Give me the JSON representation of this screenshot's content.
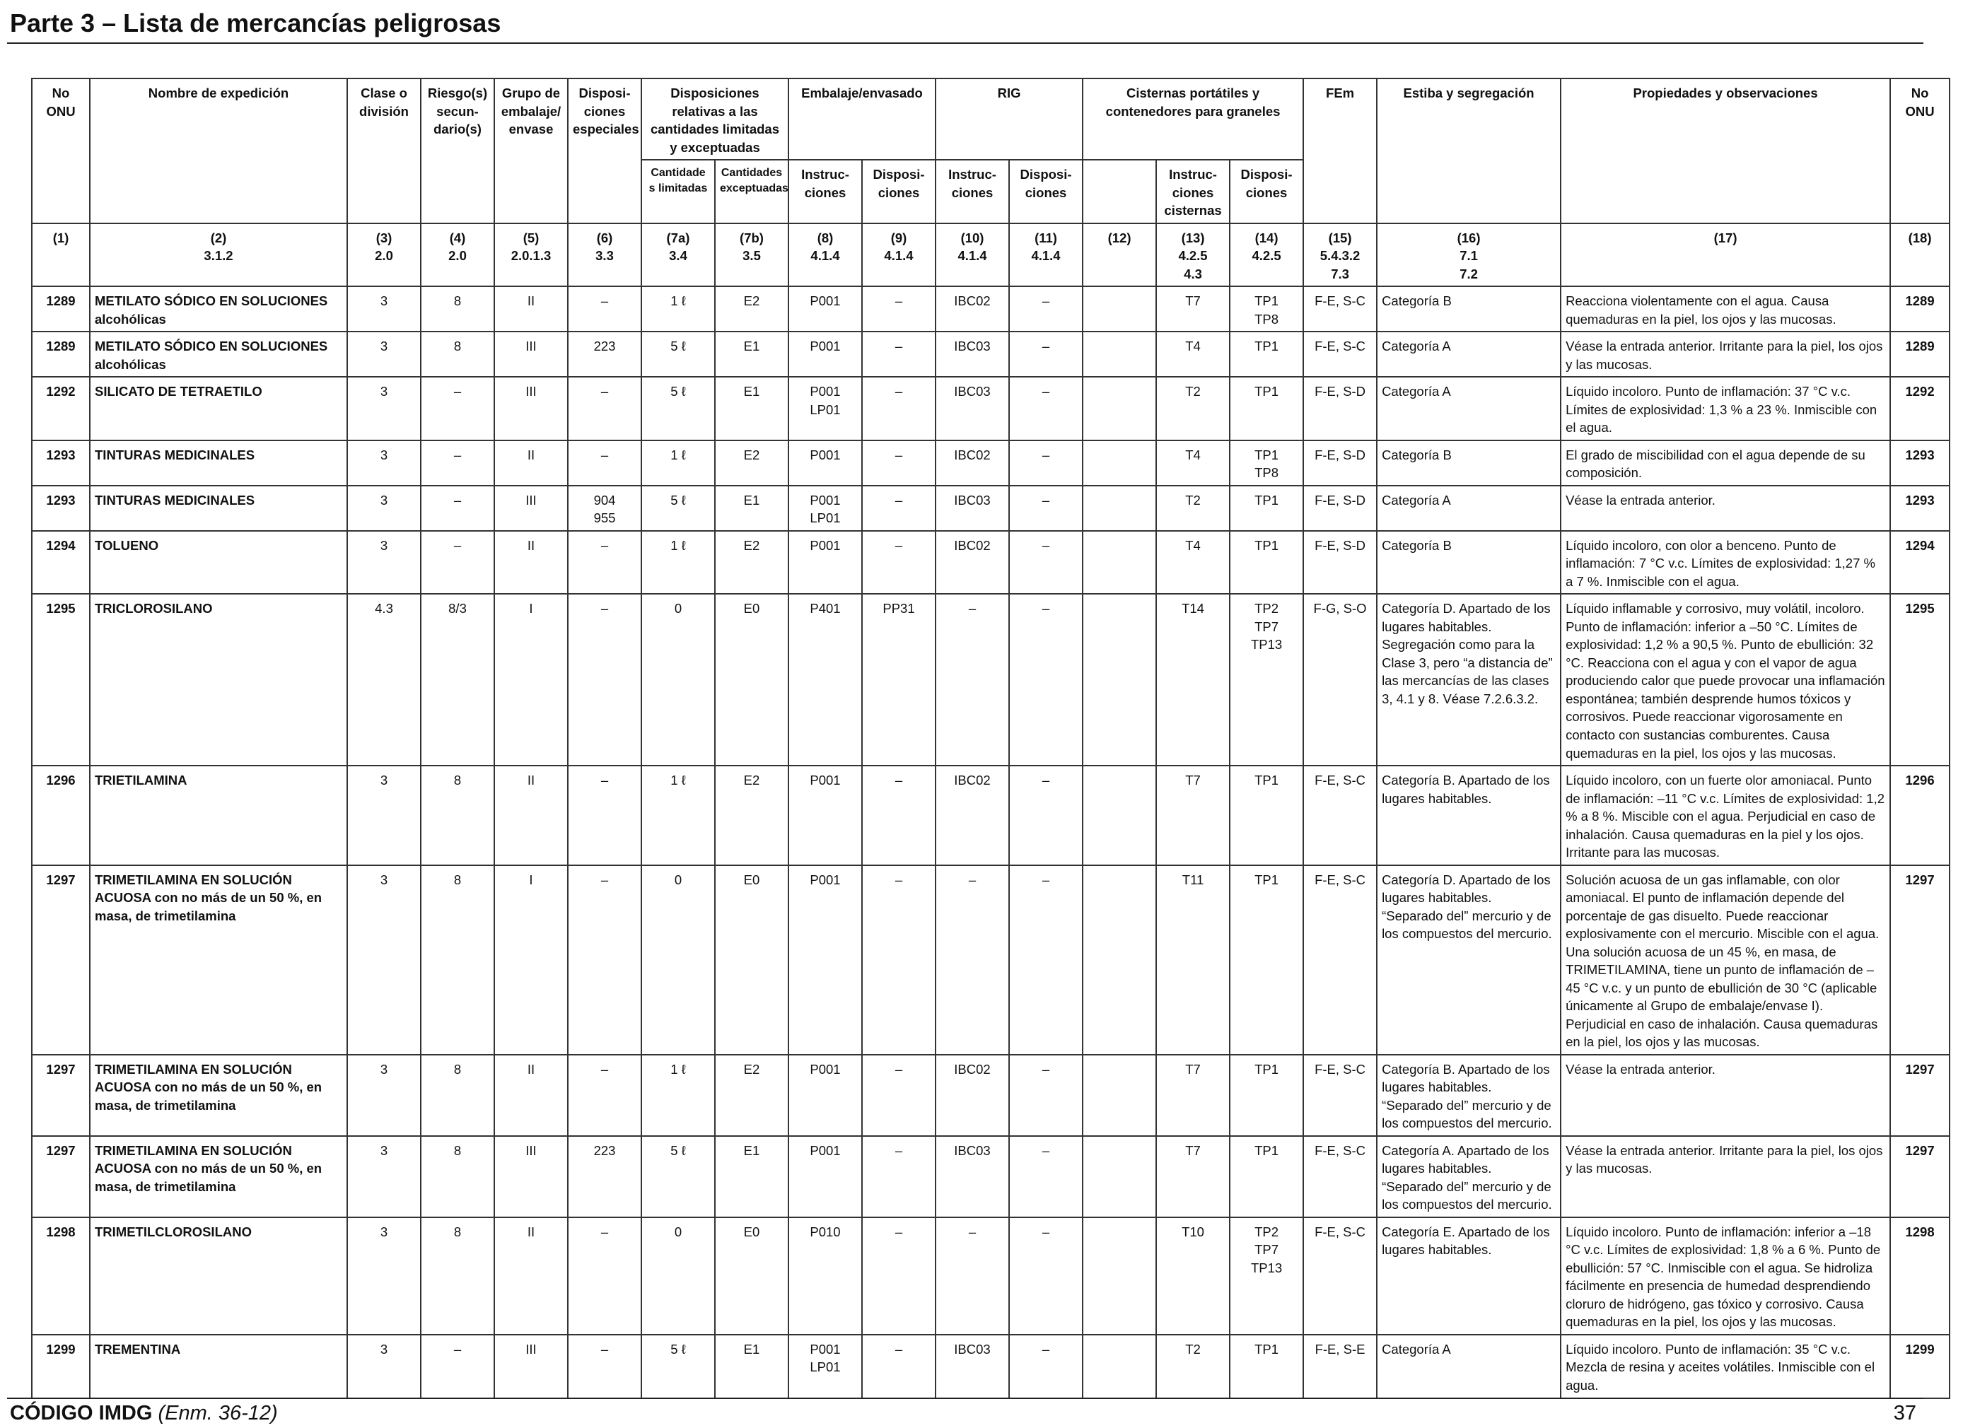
{
  "page": {
    "title": "Parte 3 – Lista de mercancías peligrosas",
    "footer_code": "CÓDIGO IMDG",
    "footer_amendment": "(Enm. 36-12)",
    "page_number": "37"
  },
  "headers": {
    "un_no": "No ONU",
    "shipping_name": "Nombre de expedición",
    "class": "Clase o división",
    "subsidiary_risk": "Riesgo(s) secun-dario(s)",
    "packing_group": "Grupo de embalaje/ envase",
    "special_provisions": "Disposi-ciones especiales",
    "limited_excepted": "Disposiciones relativas a las cantidades limitadas y exceptuadas",
    "limited_qty": "Cantidade s limitadas",
    "excepted_qty": "Cantidades exceptuadas",
    "packaging": "Embalaje/envasado",
    "instructions": "Instruc-ciones",
    "provisions": "Disposi-ciones",
    "ibc": "RIG",
    "tanks": "Cisternas portátiles y contenedores para graneles",
    "tank_instructions": "Instruc-ciones cisternas",
    "ems": "FEm",
    "stowage": "Estiba y segregación",
    "properties": "Propiedades y observaciones",
    "un_no_right": "No ONU"
  },
  "column_refs": [
    [
      "(1)"
    ],
    [
      "(2)",
      "3.1.2"
    ],
    [
      "(3)",
      "2.0"
    ],
    [
      "(4)",
      "2.0"
    ],
    [
      "(5)",
      "2.0.1.3"
    ],
    [
      "(6)",
      "3.3"
    ],
    [
      "(7a)",
      "3.4"
    ],
    [
      "(7b)",
      "3.5"
    ],
    [
      "(8)",
      "4.1.4"
    ],
    [
      "(9)",
      "4.1.4"
    ],
    [
      "(10)",
      "4.1.4"
    ],
    [
      "(11)",
      "4.1.4"
    ],
    [
      "(12)"
    ],
    [
      "(13)",
      "4.2.5",
      "4.3"
    ],
    [
      "(14)",
      "4.2.5"
    ],
    [
      "(15)",
      "5.4.3.2",
      "7.3"
    ],
    [
      "(16)",
      "7.1",
      "7.2"
    ],
    [
      "(17)"
    ],
    [
      "(18)"
    ]
  ],
  "rows": [
    {
      "key": "1289a",
      "un": "1289",
      "name": [
        "METILATO SÓDICO EN SOLUCIONES alcohólicas"
      ],
      "class": "3",
      "sub": "8",
      "pg": "II",
      "sp": [
        "–"
      ],
      "lq": "1 ℓ",
      "eq": "E2",
      "pi": [
        "P001"
      ],
      "pp": "–",
      "ibc": "IBC02",
      "ibcp": "–",
      "c12": "",
      "tank": "T7",
      "tp": [
        "TP1",
        "TP8"
      ],
      "ems": "F-E, S-C",
      "stow": "Categoría B",
      "props": "Reacciona violentamente con el agua. Causa quemaduras en la piel, los ojos y las mucosas."
    },
    {
      "key": "1289b",
      "un": "1289",
      "name": [
        "METILATO SÓDICO EN SOLUCIONES alcohólicas"
      ],
      "class": "3",
      "sub": "8",
      "pg": "III",
      "sp": [
        "223"
      ],
      "lq": "5 ℓ",
      "eq": "E1",
      "pi": [
        "P001"
      ],
      "pp": "–",
      "ibc": "IBC03",
      "ibcp": "–",
      "c12": "",
      "tank": "T4",
      "tp": [
        "TP1"
      ],
      "ems": "F-E, S-C",
      "stow": "Categoría A",
      "props": "Véase la entrada anterior. Irritante para la piel, los ojos y las mucosas."
    },
    {
      "key": "1292",
      "un": "1292",
      "name": [
        "SILICATO DE TETRAETILO"
      ],
      "class": "3",
      "sub": "–",
      "pg": "III",
      "sp": [
        "–"
      ],
      "lq": "5 ℓ",
      "eq": "E1",
      "pi": [
        "P001",
        "LP01"
      ],
      "pp": "–",
      "ibc": "IBC03",
      "ibcp": "–",
      "c12": "",
      "tank": "T2",
      "tp": [
        "TP1"
      ],
      "ems": "F-E, S-D",
      "stow": "Categoría A",
      "props": "Líquido incoloro. Punto de inflamación: 37 °C v.c. Límites de explosividad: 1,3 % a 23 %. Inmiscible con el agua."
    },
    {
      "key": "1293a",
      "un": "1293",
      "name": [
        "TINTURAS MEDICINALES"
      ],
      "class": "3",
      "sub": "–",
      "pg": "II",
      "sp": [
        "–"
      ],
      "lq": "1 ℓ",
      "eq": "E2",
      "pi": [
        "P001"
      ],
      "pp": "–",
      "ibc": "IBC02",
      "ibcp": "–",
      "c12": "",
      "tank": "T4",
      "tp": [
        "TP1",
        "TP8"
      ],
      "ems": "F-E, S-D",
      "stow": "Categoría B",
      "props": "El grado de miscibilidad con el agua depende de su composición."
    },
    {
      "key": "1293b",
      "un": "1293",
      "name": [
        "TINTURAS MEDICINALES"
      ],
      "class": "3",
      "sub": "–",
      "pg": "III",
      "sp": [
        "904",
        "955"
      ],
      "lq": "5 ℓ",
      "eq": "E1",
      "pi": [
        "P001",
        "LP01"
      ],
      "pp": "–",
      "ibc": "IBC03",
      "ibcp": "–",
      "c12": "",
      "tank": "T2",
      "tp": [
        "TP1"
      ],
      "ems": "F-E, S-D",
      "stow": "Categoría A",
      "props": "Véase la entrada anterior."
    },
    {
      "key": "1294",
      "un": "1294",
      "name": [
        "TOLUENO"
      ],
      "class": "3",
      "sub": "–",
      "pg": "II",
      "sp": [
        "–"
      ],
      "lq": "1 ℓ",
      "eq": "E2",
      "pi": [
        "P001"
      ],
      "pp": "–",
      "ibc": "IBC02",
      "ibcp": "–",
      "c12": "",
      "tank": "T4",
      "tp": [
        "TP1"
      ],
      "ems": "F-E, S-D",
      "stow": "Categoría B",
      "props": "Líquido incoloro, con olor a benceno. Punto de inflamación: 7 °C v.c. Límites de explosividad: 1,27 % a 7 %. Inmiscible con el agua."
    },
    {
      "key": "1295",
      "un": "1295",
      "name": [
        "TRICLOROSILANO"
      ],
      "class": "4.3",
      "sub": "8/3",
      "pg": "I",
      "sp": [
        "–"
      ],
      "lq": "0",
      "eq": "E0",
      "pi": [
        "P401"
      ],
      "pp": "PP31",
      "ibc": "–",
      "ibcp": "–",
      "c12": "",
      "tank": "T14",
      "tp": [
        "TP2",
        "TP7",
        "TP13"
      ],
      "ems": "F-G, S-O",
      "stow": "Categoría D. Apartado de los lugares habitables. Segregación como para la Clase 3, pero “a distancia de” las mercancías de las clases 3, 4.1 y 8. Véase 7.2.6.3.2.",
      "props": "Líquido inflamable y corrosivo, muy volátil, incoloro. Punto de inflamación: inferior a –50 °C. Límites de explosividad: 1,2 % a 90,5 %. Punto de ebullición: 32 °C. Reacciona con el agua y con el vapor de agua produciendo calor que puede provocar una inflamación espontánea; también desprende humos tóxicos y corrosivos. Puede reaccionar vigorosamente en contacto con sustancias comburentes. Causa quemaduras en la piel, los ojos y las mucosas."
    },
    {
      "key": "1296",
      "un": "1296",
      "name": [
        "TRIETILAMINA"
      ],
      "class": "3",
      "sub": "8",
      "pg": "II",
      "sp": [
        "–"
      ],
      "lq": "1 ℓ",
      "eq": "E2",
      "pi": [
        "P001"
      ],
      "pp": "–",
      "ibc": "IBC02",
      "ibcp": "–",
      "c12": "",
      "tank": "T7",
      "tp": [
        "TP1"
      ],
      "ems": "F-E, S-C",
      "stow": "Categoría B. Apartado de los lugares habitables.",
      "props": "Líquido incoloro, con un fuerte olor amoniacal. Punto de inflamación: –11 °C v.c. Límites de explosividad: 1,2 % a 8 %. Miscible con el agua. Perjudicial en caso de inhalación. Causa quemaduras en la piel y los ojos. Irritante para las mucosas."
    },
    {
      "key": "1297a",
      "un": "1297",
      "name": [
        "TRIMETILAMINA EN SOLUCIÓN ACUOSA con no más de un 50 %, en masa, de trimetilamina"
      ],
      "class": "3",
      "sub": "8",
      "pg": "I",
      "sp": [
        "–"
      ],
      "lq": "0",
      "eq": "E0",
      "pi": [
        "P001"
      ],
      "pp": "–",
      "ibc": "–",
      "ibcp": "–",
      "c12": "",
      "tank": "T11",
      "tp": [
        "TP1"
      ],
      "ems": "F-E, S-C",
      "stow": "Categoría D. Apartado de los lugares habitables. “Separado del” mercurio y de los compuestos del mercurio.",
      "props": "Solución acuosa de un gas inflamable, con olor amoniacal. El punto de inflamación depende del porcentaje de gas disuelto. Puede reaccionar explosivamente con el mercurio. Miscible con el agua. Una solución acuosa de un 45 %, en masa, de TRIMETILAMINA, tiene un punto de inflamación de – 45 °C v.c. y un punto de ebullición de 30 °C (aplicable únicamente al Grupo de embalaje/envase I). Perjudicial en caso de inhalación. Causa quemaduras en la piel, los ojos y las mucosas."
    },
    {
      "key": "1297b",
      "un": "1297",
      "name": [
        "TRIMETILAMINA EN SOLUCIÓN ACUOSA con no más de un 50 %, en masa, de trimetilamina"
      ],
      "class": "3",
      "sub": "8",
      "pg": "II",
      "sp": [
        "–"
      ],
      "lq": "1 ℓ",
      "eq": "E2",
      "pi": [
        "P001"
      ],
      "pp": "–",
      "ibc": "IBC02",
      "ibcp": "–",
      "c12": "",
      "tank": "T7",
      "tp": [
        "TP1"
      ],
      "ems": "F-E, S-C",
      "stow": "Categoría B. Apartado de los lugares habitables. “Separado del” mercurio y de los compuestos del mercurio.",
      "props": "Véase la entrada anterior."
    },
    {
      "key": "1297c",
      "un": "1297",
      "name": [
        "TRIMETILAMINA EN SOLUCIÓN ACUOSA con no más de un 50 %, en masa, de trimetilamina"
      ],
      "class": "3",
      "sub": "8",
      "pg": "III",
      "sp": [
        "223"
      ],
      "lq": "5 ℓ",
      "eq": "E1",
      "pi": [
        "P001"
      ],
      "pp": "–",
      "ibc": "IBC03",
      "ibcp": "–",
      "c12": "",
      "tank": "T7",
      "tp": [
        "TP1"
      ],
      "ems": "F-E, S-C",
      "stow": "Categoría A. Apartado de los lugares habitables. “Separado del” mercurio y de los compuestos del mercurio.",
      "props": "Véase la entrada anterior. Irritante para la piel, los ojos y las mucosas."
    },
    {
      "key": "1298",
      "un": "1298",
      "name": [
        "TRIMETILCLOROSILANO"
      ],
      "class": "3",
      "sub": "8",
      "pg": "II",
      "sp": [
        "–"
      ],
      "lq": "0",
      "eq": "E0",
      "pi": [
        "P010"
      ],
      "pp": "–",
      "ibc": "–",
      "ibcp": "–",
      "c12": "",
      "tank": "T10",
      "tp": [
        "TP2",
        "TP7",
        "TP13"
      ],
      "ems": "F-E, S-C",
      "stow": "Categoría E. Apartado de los lugares habitables.",
      "props": "Líquido incoloro. Punto de inflamación: inferior a –18 °C v.c. Límites de explosividad: 1,8 % a 6 %. Punto de ebullición: 57 °C. Inmiscible con el agua. Se hidroliza fácilmente en presencia de humedad desprendiendo cloruro de hidrógeno, gas tóxico y corrosivo. Causa quemaduras en la piel, los ojos y las mucosas."
    },
    {
      "key": "1299",
      "un": "1299",
      "name": [
        "TREMENTINA"
      ],
      "class": "3",
      "sub": "–",
      "pg": "III",
      "sp": [
        "–"
      ],
      "lq": "5 ℓ",
      "eq": "E1",
      "pi": [
        "P001",
        "LP01"
      ],
      "pp": "–",
      "ibc": "IBC03",
      "ibcp": "–",
      "c12": "",
      "tank": "T2",
      "tp": [
        "TP1"
      ],
      "ems": "F-E, S-E",
      "stow": "Categoría A",
      "props": "Líquido incoloro. Punto de inflamación: 35 °C v.c. Mezcla de resina y aceites volátiles. Inmiscible con el agua."
    }
  ]
}
